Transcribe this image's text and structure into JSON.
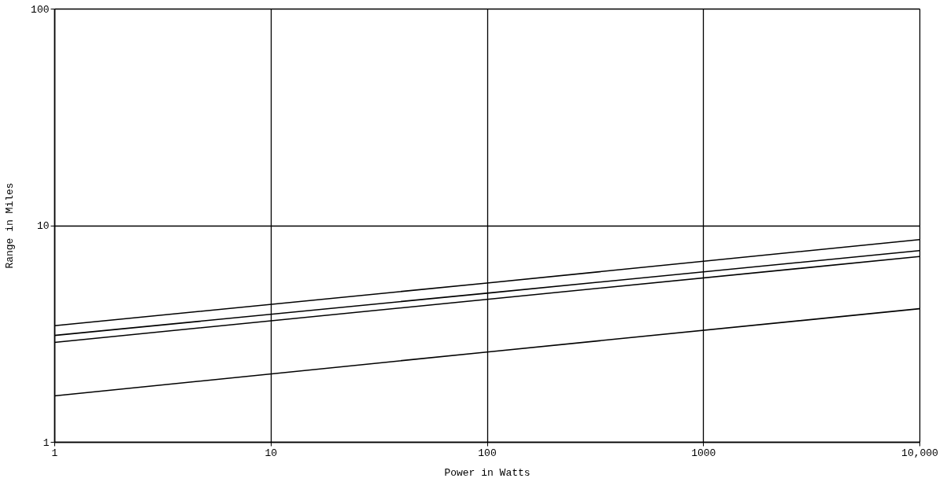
{
  "chart_data": {
    "type": "line",
    "xlabel": "Power in Watts",
    "ylabel": "Range in Miles",
    "log": "xy",
    "grid": true,
    "legend": false,
    "marker": "none",
    "line_style": "solid",
    "x": [
      1,
      100,
      10000
    ],
    "series": [
      {
        "color": "#000000",
        "values": [
          3.44,
          5.41,
          8.59
        ]
      },
      {
        "color": "#000000",
        "values": [
          3.1,
          4.86,
          7.64
        ]
      },
      {
        "color": "#000000",
        "values": [
          2.88,
          4.55,
          7.17
        ]
      },
      {
        "color": "#000000",
        "values": [
          1.63,
          2.6,
          4.12
        ]
      }
    ],
    "xlim": [
      1,
      10000
    ],
    "ylim": [
      1,
      100
    ],
    "xticks": [
      1,
      10,
      100,
      1000,
      {
        "value": 10000,
        "label": "10,000"
      }
    ],
    "yticks": [
      1,
      10,
      100
    ]
  }
}
